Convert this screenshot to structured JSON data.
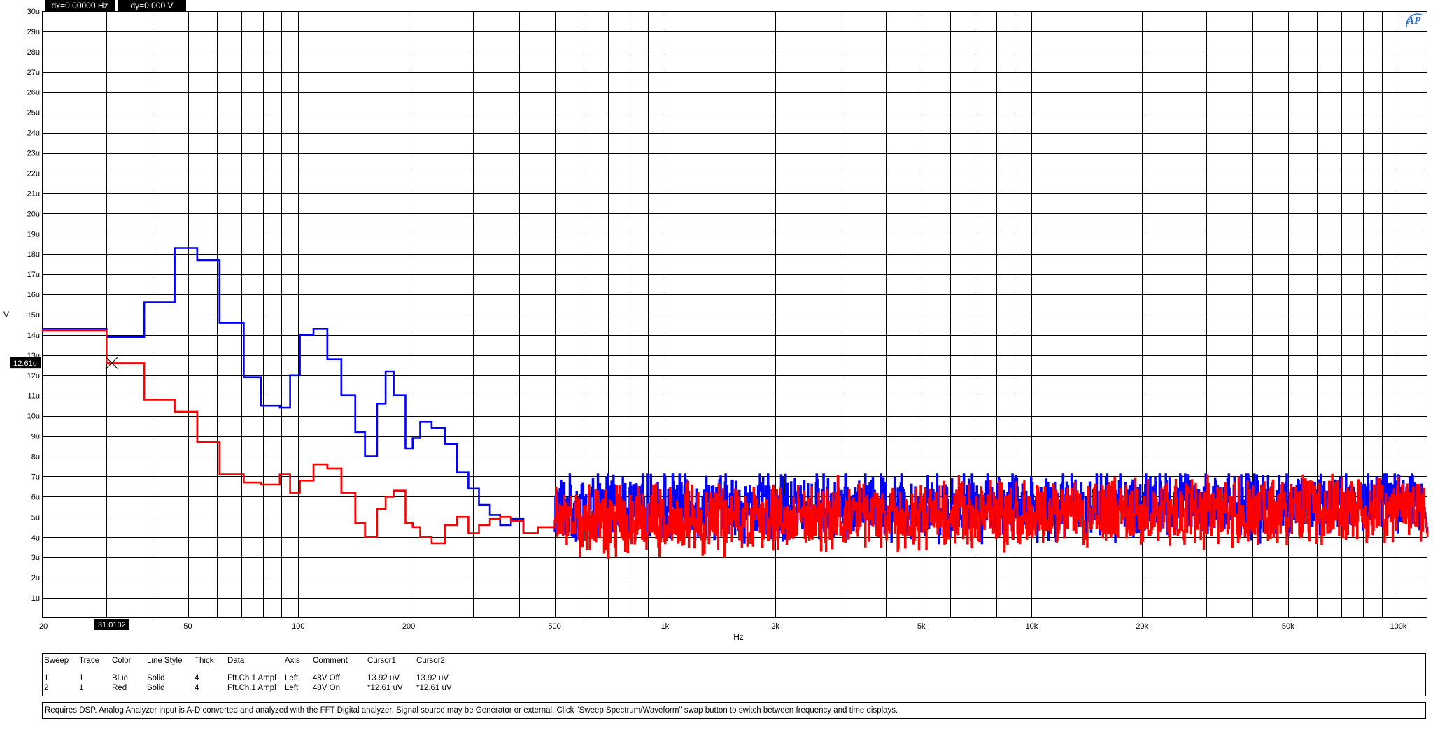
{
  "chart_data": {
    "type": "line",
    "xscale": "log",
    "xlim": [
      20,
      120000
    ],
    "ylim": [
      0,
      30
    ],
    "grid": true,
    "xlabel": "Hz",
    "ylabel": "V",
    "x_ticks": [
      {
        "v": 20,
        "label": "20"
      },
      {
        "v": 50,
        "label": "50"
      },
      {
        "v": 100,
        "label": "100"
      },
      {
        "v": 200,
        "label": "200"
      },
      {
        "v": 500,
        "label": "500"
      },
      {
        "v": 1000,
        "label": "1k"
      },
      {
        "v": 2000,
        "label": "2k"
      },
      {
        "v": 5000,
        "label": "5k"
      },
      {
        "v": 10000,
        "label": "10k"
      },
      {
        "v": 20000,
        "label": "20k"
      },
      {
        "v": 50000,
        "label": "50k"
      },
      {
        "v": 100000,
        "label": "100k"
      }
    ],
    "y_ticks": [
      "1u",
      "2u",
      "3u",
      "4u",
      "5u",
      "6u",
      "7u",
      "8u",
      "9u",
      "10u",
      "11u",
      "12u",
      "13u",
      "14u",
      "15u",
      "16u",
      "17u",
      "18u",
      "19u",
      "20u",
      "21u",
      "22u",
      "23u",
      "24u",
      "25u",
      "26u",
      "27u",
      "28u",
      "29u",
      "30u"
    ],
    "series": [
      {
        "color": "#0000ff",
        "steps": [
          [
            20,
            14.3
          ],
          [
            30,
            13.9
          ],
          [
            38,
            15.6
          ],
          [
            46,
            18.3
          ],
          [
            53,
            17.7
          ],
          [
            61,
            14.6
          ],
          [
            71,
            11.9
          ],
          [
            79,
            10.5
          ],
          [
            89,
            10.4
          ],
          [
            95,
            12.0
          ],
          [
            101,
            14.0
          ],
          [
            110,
            14.3
          ],
          [
            120,
            12.8
          ],
          [
            131,
            11.0
          ],
          [
            143,
            9.2
          ],
          [
            152,
            8.0
          ],
          [
            164,
            10.6
          ],
          [
            173,
            12.2
          ],
          [
            182,
            11.0
          ],
          [
            196,
            8.4
          ],
          [
            205,
            8.9
          ],
          [
            215,
            9.7
          ],
          [
            231,
            9.4
          ],
          [
            251,
            8.6
          ],
          [
            271,
            7.2
          ],
          [
            291,
            6.4
          ],
          [
            311,
            5.6
          ],
          [
            333,
            5.1
          ],
          [
            355,
            4.6
          ],
          [
            380,
            4.9
          ],
          [
            411,
            4.2
          ],
          [
            450,
            4.5
          ],
          [
            500,
            4.3
          ]
        ],
        "noise": {
          "from": 500,
          "to": 120000,
          "start": 5.5,
          "end": 5.7,
          "spread": 2.0
        }
      },
      {
        "color": "#ff0000",
        "steps": [
          [
            20,
            14.2
          ],
          [
            30,
            12.6
          ],
          [
            38,
            10.8
          ],
          [
            46,
            10.2
          ],
          [
            53,
            8.7
          ],
          [
            61,
            7.1
          ],
          [
            71,
            6.7
          ],
          [
            79,
            6.6
          ],
          [
            89,
            7.1
          ],
          [
            95,
            6.2
          ],
          [
            101,
            6.8
          ],
          [
            110,
            7.6
          ],
          [
            120,
            7.4
          ],
          [
            131,
            6.2
          ],
          [
            143,
            4.7
          ],
          [
            152,
            4.0
          ],
          [
            164,
            5.4
          ],
          [
            173,
            6.0
          ],
          [
            182,
            6.3
          ],
          [
            196,
            4.7
          ],
          [
            205,
            4.5
          ],
          [
            215,
            4.0
          ],
          [
            231,
            3.7
          ],
          [
            251,
            4.6
          ],
          [
            271,
            5.0
          ],
          [
            291,
            4.2
          ],
          [
            311,
            4.6
          ],
          [
            333,
            4.9
          ],
          [
            355,
            5.0
          ],
          [
            380,
            4.8
          ],
          [
            411,
            4.2
          ],
          [
            450,
            4.5
          ],
          [
            500,
            4.8
          ]
        ],
        "noise": {
          "from": 500,
          "to": 120000,
          "start": 4.8,
          "end": 5.5,
          "spread": 2.0
        }
      }
    ],
    "cursor": {
      "x": 31.0102,
      "y": 12.61,
      "x_label": "31.0102",
      "y_label": "12.61u"
    },
    "readout": {
      "dx": "dx=0.00000  Hz",
      "dy": "dy=0.000   V"
    }
  },
  "legend": {
    "headers": [
      "Sweep",
      "Trace",
      "Color",
      "Line Style",
      "Thick",
      "Data",
      "Axis",
      "Comment",
      "Cursor1",
      "Cursor2"
    ],
    "rows": [
      {
        "sweep": "1",
        "trace": "1",
        "color": "Blue",
        "style": "Solid",
        "thick": "4",
        "data": "Fft.Ch.1 Ampl",
        "axis": "Left",
        "comment": "48V Off",
        "cursor1": "13.92   uV",
        "cursor2": "13.92   uV"
      },
      {
        "sweep": "2",
        "trace": "1",
        "color": "Red",
        "style": "Solid",
        "thick": "4",
        "data": "Fft.Ch.1 Ampl",
        "axis": "Left",
        "comment": "48V On",
        "cursor1": "*12.61   uV",
        "cursor2": "*12.61   uV"
      }
    ]
  },
  "note": "Requires DSP.  Analog Analyzer input is A-D converted and analyzed with the FFT Digital analyzer.  Signal source may be Generator or external.  Click \"Sweep Spectrum/Waveform\" swap button to switch between frequency and time displays.",
  "logo_text": "AP"
}
